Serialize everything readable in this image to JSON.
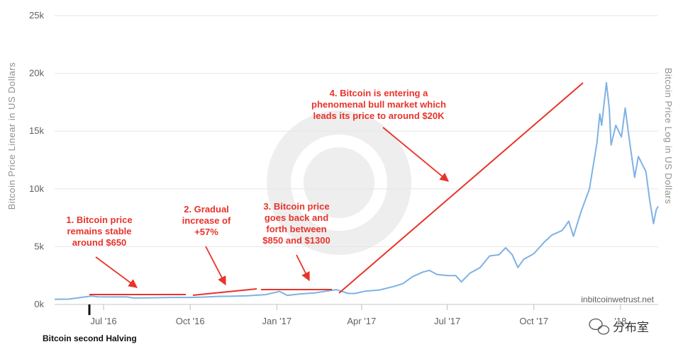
{
  "chart_data": {
    "type": "line",
    "title": "",
    "ylabel_left": "Bitcoin Price Linear in US Dollars",
    "ylabel_right": "Bitcoin Price Log in US Dollars",
    "ylim": [
      0,
      25000
    ],
    "yticks": [
      {
        "value": 0,
        "label": "0k"
      },
      {
        "value": 5000,
        "label": "5k"
      },
      {
        "value": 10000,
        "label": "10k"
      },
      {
        "value": 15000,
        "label": "15k"
      },
      {
        "value": 20000,
        "label": "20k"
      },
      {
        "value": 25000,
        "label": "25k"
      }
    ],
    "xlim": [
      "2016-05-10",
      "2018-02-10"
    ],
    "xticks": [
      {
        "date": "2016-07-01",
        "label": "Jul '16"
      },
      {
        "date": "2016-10-01",
        "label": "Oct '16"
      },
      {
        "date": "2017-01-01",
        "label": "Jan '17"
      },
      {
        "date": "2017-04-01",
        "label": "Apr '17"
      },
      {
        "date": "2017-07-01",
        "label": "Jul '17"
      },
      {
        "date": "2017-10-01",
        "label": "Oct '17"
      },
      {
        "date": "2018-01-01",
        "label": "'18"
      }
    ],
    "grid": true,
    "series": [
      {
        "color": "#7eb2e4",
        "points": [
          [
            "2016-05-10",
            450
          ],
          [
            "2016-05-25",
            460
          ],
          [
            "2016-06-05",
            580
          ],
          [
            "2016-06-18",
            730
          ],
          [
            "2016-06-25",
            660
          ],
          [
            "2016-07-09",
            650
          ],
          [
            "2016-07-25",
            655
          ],
          [
            "2016-08-02",
            560
          ],
          [
            "2016-08-20",
            575
          ],
          [
            "2016-09-10",
            605
          ],
          [
            "2016-09-30",
            608
          ],
          [
            "2016-10-15",
            640
          ],
          [
            "2016-10-31",
            700
          ],
          [
            "2016-11-15",
            710
          ],
          [
            "2016-12-01",
            750
          ],
          [
            "2016-12-20",
            850
          ],
          [
            "2017-01-04",
            1130
          ],
          [
            "2017-01-12",
            780
          ],
          [
            "2017-01-25",
            900
          ],
          [
            "2017-02-10",
            1000
          ],
          [
            "2017-02-25",
            1180
          ],
          [
            "2017-03-05",
            1280
          ],
          [
            "2017-03-10",
            1150
          ],
          [
            "2017-03-18",
            950
          ],
          [
            "2017-03-25",
            950
          ],
          [
            "2017-04-05",
            1150
          ],
          [
            "2017-04-20",
            1250
          ],
          [
            "2017-05-05",
            1550
          ],
          [
            "2017-05-15",
            1800
          ],
          [
            "2017-05-25",
            2400
          ],
          [
            "2017-06-05",
            2800
          ],
          [
            "2017-06-12",
            2950
          ],
          [
            "2017-06-20",
            2600
          ],
          [
            "2017-07-01",
            2500
          ],
          [
            "2017-07-10",
            2500
          ],
          [
            "2017-07-16",
            1950
          ],
          [
            "2017-07-25",
            2700
          ],
          [
            "2017-08-05",
            3200
          ],
          [
            "2017-08-15",
            4200
          ],
          [
            "2017-08-25",
            4300
          ],
          [
            "2017-09-01",
            4900
          ],
          [
            "2017-09-08",
            4300
          ],
          [
            "2017-09-14",
            3200
          ],
          [
            "2017-09-20",
            3900
          ],
          [
            "2017-10-01",
            4400
          ],
          [
            "2017-10-12",
            5400
          ],
          [
            "2017-10-20",
            6000
          ],
          [
            "2017-10-31",
            6400
          ],
          [
            "2017-11-07",
            7200
          ],
          [
            "2017-11-12",
            5900
          ],
          [
            "2017-11-20",
            8000
          ],
          [
            "2017-11-29",
            10000
          ],
          [
            "2017-12-07",
            14000
          ],
          [
            "2017-12-10",
            16500
          ],
          [
            "2017-12-12",
            15500
          ],
          [
            "2017-12-17",
            19200
          ],
          [
            "2017-12-20",
            17000
          ],
          [
            "2017-12-22",
            13800
          ],
          [
            "2017-12-27",
            15500
          ],
          [
            "2018-01-02",
            14500
          ],
          [
            "2018-01-06",
            17000
          ],
          [
            "2018-01-10",
            14500
          ],
          [
            "2018-01-16",
            11000
          ],
          [
            "2018-01-20",
            12800
          ],
          [
            "2018-01-28",
            11500
          ],
          [
            "2018-02-01",
            9000
          ],
          [
            "2018-02-05",
            7000
          ],
          [
            "2018-02-08",
            8200
          ],
          [
            "2018-02-10",
            8500
          ]
        ]
      }
    ],
    "annotations": [
      {
        "lines": [
          "1. Bitcoin price",
          "remains stable",
          "around $650"
        ]
      },
      {
        "lines": [
          "2. Gradual",
          "increase of",
          "+57%"
        ]
      },
      {
        "lines": [
          "3. Bitcoin price",
          "goes back and",
          "forth between",
          "$850 and $1300"
        ]
      },
      {
        "lines": [
          "4. Bitcoin is entering a",
          "phenomenal bull market which",
          "leads its price to around $20K"
        ]
      }
    ],
    "halving": {
      "date": "2016-07-09",
      "label": "Bitcoin second Halving"
    },
    "credit": "inbitcoinwetrust.net",
    "watermark": "分布室"
  }
}
